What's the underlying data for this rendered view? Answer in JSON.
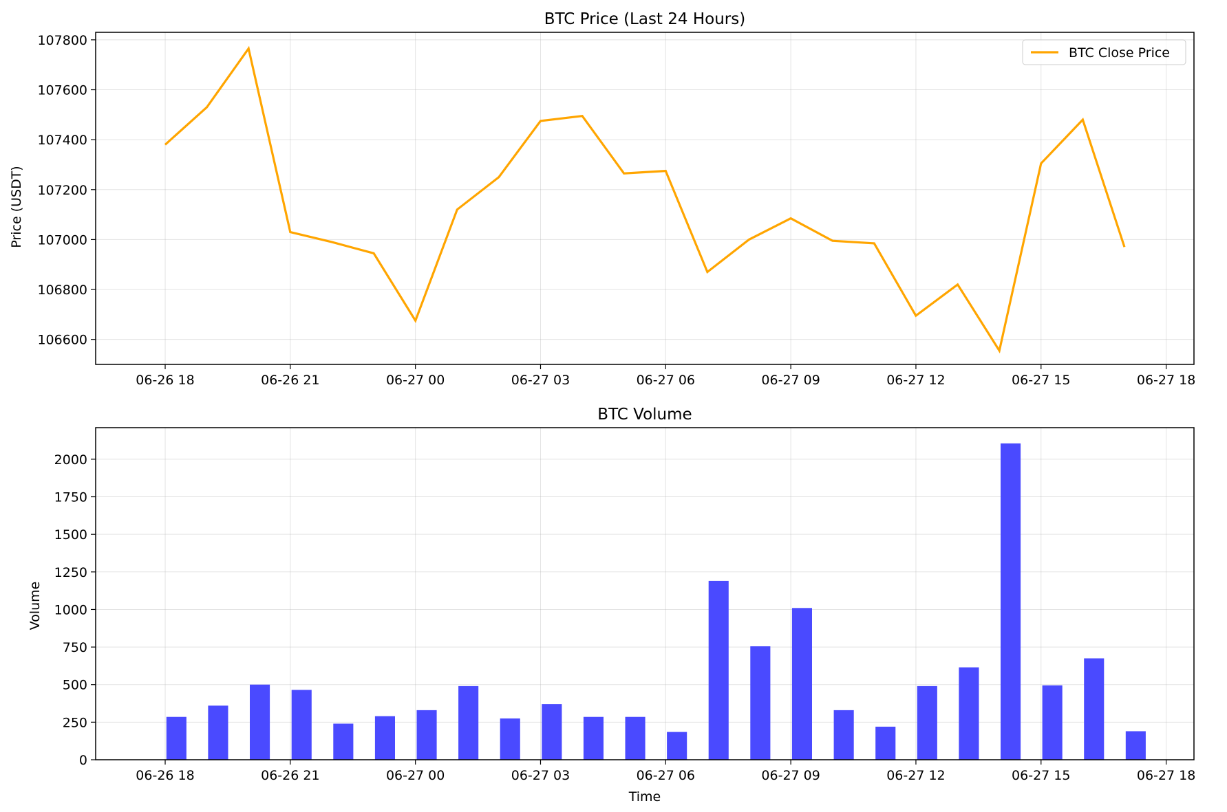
{
  "chart_data": [
    {
      "type": "line",
      "title": "BTC Price (Last 24 Hours)",
      "xlabel": "",
      "ylabel": "Price (USDT)",
      "ylim": [
        106500,
        107830
      ],
      "xlim": [
        "06-26 16:20",
        "06-27 18:40"
      ],
      "xticks": [
        "06-26 18",
        "06-26 21",
        "06-27 00",
        "06-27 03",
        "06-27 06",
        "06-27 09",
        "06-27 12",
        "06-27 15",
        "06-27 18"
      ],
      "yticks": [
        106600,
        106800,
        107000,
        107200,
        107400,
        107600,
        107800
      ],
      "grid": true,
      "legend": "top-right",
      "series": [
        {
          "name": "BTC Close Price",
          "color": "#ffa500",
          "x": [
            "06-26 18:00",
            "06-26 19:00",
            "06-26 20:00",
            "06-26 21:00",
            "06-26 22:00",
            "06-26 23:00",
            "06-27 00:00",
            "06-27 01:00",
            "06-27 02:00",
            "06-27 03:00",
            "06-27 04:00",
            "06-27 05:00",
            "06-27 06:00",
            "06-27 07:00",
            "06-27 08:00",
            "06-27 09:00",
            "06-27 10:00",
            "06-27 11:00",
            "06-27 12:00",
            "06-27 13:00",
            "06-27 14:00",
            "06-27 15:00",
            "06-27 16:00",
            "06-27 17:00"
          ],
          "values": [
            107380,
            107530,
            107765,
            107030,
            106990,
            106945,
            106675,
            107120,
            107250,
            107475,
            107495,
            107265,
            107275,
            106870,
            107000,
            107085,
            106995,
            106985,
            106695,
            106820,
            106555,
            107305,
            107480,
            106970
          ]
        }
      ]
    },
    {
      "type": "bar",
      "title": "BTC Volume",
      "xlabel": "Time",
      "ylabel": "Volume",
      "ylim": [
        0,
        2210
      ],
      "xlim": [
        "06-26 16:20",
        "06-27 18:40"
      ],
      "xticks": [
        "06-26 18",
        "06-26 21",
        "06-27 00",
        "06-27 03",
        "06-27 06",
        "06-27 09",
        "06-27 12",
        "06-27 15",
        "06-27 18"
      ],
      "yticks": [
        0,
        250,
        500,
        750,
        1000,
        1250,
        1500,
        1750,
        2000
      ],
      "grid": true,
      "series": [
        {
          "color": "#4a4aff",
          "x": [
            "06-26 18:00",
            "06-26 19:00",
            "06-26 20:00",
            "06-26 21:00",
            "06-26 22:00",
            "06-26 23:00",
            "06-27 00:00",
            "06-27 01:00",
            "06-27 02:00",
            "06-27 03:00",
            "06-27 04:00",
            "06-27 05:00",
            "06-27 06:00",
            "06-27 07:00",
            "06-27 08:00",
            "06-27 09:00",
            "06-27 10:00",
            "06-27 11:00",
            "06-27 12:00",
            "06-27 13:00",
            "06-27 14:00",
            "06-27 15:00",
            "06-27 16:00",
            "06-27 17:00"
          ],
          "values": [
            285,
            360,
            500,
            465,
            240,
            290,
            330,
            490,
            275,
            370,
            285,
            285,
            185,
            1190,
            755,
            1010,
            330,
            220,
            490,
            615,
            2105,
            495,
            675,
            190
          ]
        }
      ]
    }
  ]
}
